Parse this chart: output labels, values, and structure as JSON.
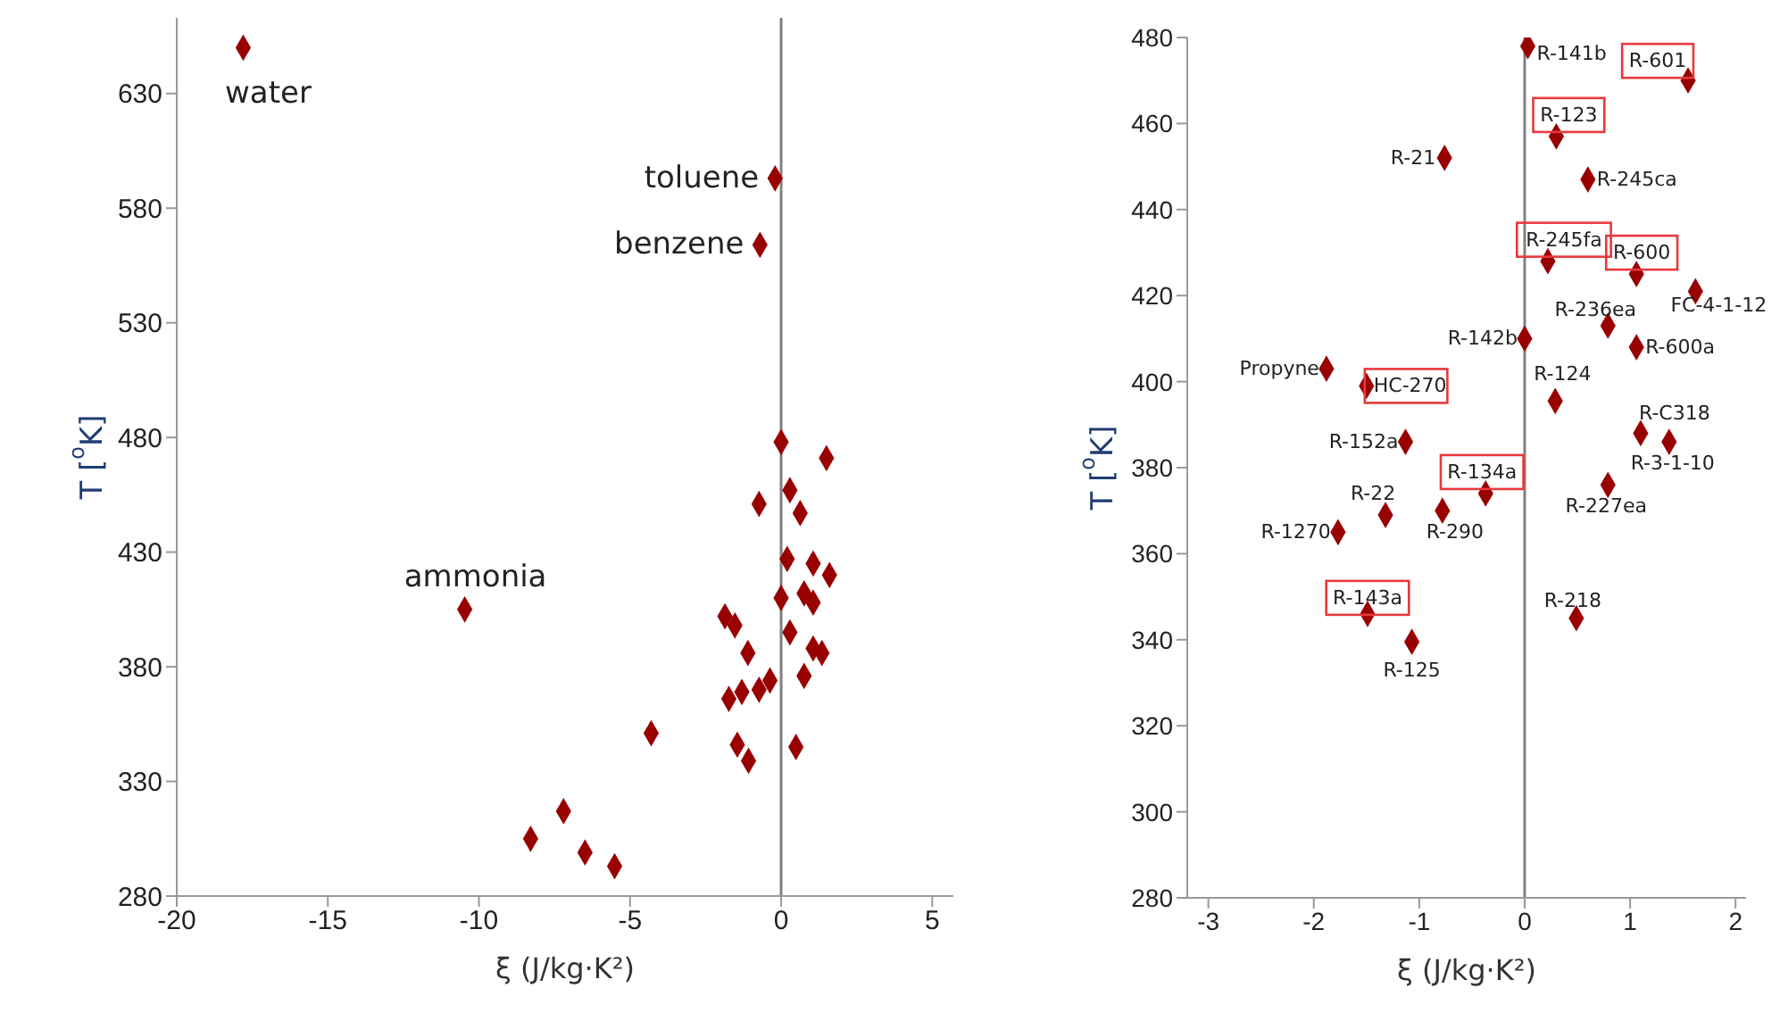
{
  "chart_data": [
    {
      "type": "scatter",
      "xlabel": "ξ (J/kg·K²)",
      "ylabel": "T [$^{o}$K]",
      "xlim": [
        -20,
        5.7
      ],
      "xticks": [
        -20,
        -15,
        -10,
        -5,
        0,
        5
      ],
      "ylim": [
        280,
        663
      ],
      "yticks": [
        280,
        330,
        380,
        430,
        480,
        530,
        580,
        630
      ],
      "grid": false,
      "legend": false,
      "marker": "diamond",
      "series": [
        {
          "color": "#990000",
          "x": [
            -17.8,
            -0.2,
            -0.7,
            0,
            1.5,
            0.29,
            -0.73,
            0.63,
            0.2,
            1.06,
            1.6,
            0,
            0.76,
            1.06,
            -1.86,
            -1.53,
            0.29,
            -1.1,
            1.06,
            1.35,
            0.76,
            -0.37,
            -0.73,
            -1.3,
            -1.73,
            -10.47,
            -4.3,
            -1.45,
            0.49,
            -1.08,
            -7.2,
            -8.29,
            -6.49,
            -5.51
          ],
          "values": [
            650,
            593,
            564,
            478,
            471,
            457,
            451,
            447,
            427,
            425,
            420,
            410,
            412,
            408,
            402,
            398,
            395,
            386,
            388,
            386,
            376,
            374,
            370,
            369,
            366,
            405,
            351,
            346,
            345,
            339,
            317,
            305,
            299,
            293
          ]
        }
      ],
      "ref_lines": [
        {
          "axis": "x",
          "value": 0,
          "color": "#808080"
        }
      ],
      "annotations": [
        {
          "text": "water",
          "x": -17.8,
          "y": 650
        },
        {
          "text": "toluene",
          "x": -0.2,
          "y": 593
        },
        {
          "text": "benzene",
          "x": -0.7,
          "y": 564
        },
        {
          "text": "ammonia",
          "x": -10.47,
          "y": 405
        }
      ]
    },
    {
      "type": "scatter",
      "xlabel": "ξ (J/kg·K²)",
      "ylabel": "T [$^{o}$K]",
      "xlim": [
        -3.2,
        2.1
      ],
      "xticks": [
        -3,
        -2,
        -1,
        0,
        1,
        2
      ],
      "ylim": [
        280,
        480
      ],
      "yticks": [
        280,
        300,
        320,
        340,
        360,
        380,
        400,
        420,
        440,
        460,
        480
      ],
      "grid": false,
      "legend": false,
      "marker": "diamond",
      "series": [
        {
          "color": "#990000",
          "x": [
            0.03,
            1.55,
            0.3,
            -0.76,
            0.6,
            0.22,
            1.06,
            1.62,
            0.79,
            0,
            1.06,
            -1.88,
            -1.5,
            0.29,
            1.1,
            1.37,
            -1.13,
            0.79,
            -0.37,
            -0.78,
            -1.32,
            -1.77,
            -1.49,
            -1.07,
            0.49
          ],
          "values": [
            478,
            470,
            457,
            452,
            447,
            428,
            425,
            421,
            413,
            410,
            408,
            403,
            399,
            395.5,
            388,
            386,
            386,
            376,
            374,
            370,
            369,
            365,
            346,
            339.5,
            345
          ]
        }
      ],
      "ref_lines": [
        {
          "axis": "x",
          "value": 0,
          "color": "#808080"
        }
      ],
      "annotations": [
        {
          "text": "R-141b",
          "x": 0.03,
          "y": 478
        },
        {
          "text": "R-601",
          "x": 1.55,
          "y": 470
        },
        {
          "text": "R-123",
          "x": 0.3,
          "y": 457
        },
        {
          "text": "R-21",
          "x": -0.76,
          "y": 452
        },
        {
          "text": "R-245ca",
          "x": 0.6,
          "y": 447
        },
        {
          "text": "R-245fa",
          "x": 0.22,
          "y": 428
        },
        {
          "text": "R-600",
          "x": 1.06,
          "y": 425
        },
        {
          "text": "FC-4-1-12",
          "x": 1.62,
          "y": 421
        },
        {
          "text": "R-236ea",
          "x": 0.79,
          "y": 413
        },
        {
          "text": "R-142b",
          "x": 0,
          "y": 410
        },
        {
          "text": "R-600a",
          "x": 1.06,
          "y": 408
        },
        {
          "text": "Propyne",
          "x": -1.88,
          "y": 403
        },
        {
          "text": "HC-270",
          "x": -1.5,
          "y": 399
        },
        {
          "text": "R-124",
          "x": 0.29,
          "y": 395.5
        },
        {
          "text": "R-C318",
          "x": 1.1,
          "y": 388
        },
        {
          "text": "R-3-1-10",
          "x": 1.37,
          "y": 386
        },
        {
          "text": "R-152a",
          "x": -1.13,
          "y": 386
        },
        {
          "text": "R-227ea",
          "x": 0.79,
          "y": 376
        },
        {
          "text": "R-134a",
          "x": -0.37,
          "y": 374
        },
        {
          "text": "R-290",
          "x": -0.78,
          "y": 370
        },
        {
          "text": "R-22",
          "x": -1.32,
          "y": 369
        },
        {
          "text": "R-1270",
          "x": -1.77,
          "y": 365
        },
        {
          "text": "R-143a",
          "x": -1.49,
          "y": 346
        },
        {
          "text": "R-125",
          "x": -1.07,
          "y": 339.5
        },
        {
          "text": "R-218",
          "x": 0.49,
          "y": 345
        }
      ]
    }
  ]
}
